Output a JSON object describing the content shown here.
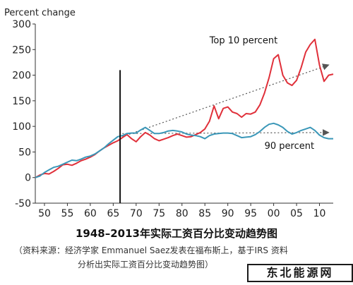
{
  "chart_data": {
    "type": "line",
    "ylabel": "Percent change",
    "ylim": [
      -50,
      300
    ],
    "xlim": [
      1948,
      2013
    ],
    "yticks": [
      -50,
      0,
      50,
      100,
      150,
      200,
      250,
      300
    ],
    "xticks": [
      {
        "year": 1950,
        "label": "50"
      },
      {
        "year": 1955,
        "label": "55"
      },
      {
        "year": 1960,
        "label": "60"
      },
      {
        "year": 1965,
        "label": "65"
      },
      {
        "year": 1970,
        "label": "70"
      },
      {
        "year": 1975,
        "label": "75"
      },
      {
        "year": 1980,
        "label": "80"
      },
      {
        "year": 1985,
        "label": "85"
      },
      {
        "year": 1990,
        "label": "90"
      },
      {
        "year": 1995,
        "label": "95"
      },
      {
        "year": 2000,
        "label": "00"
      },
      {
        "year": 2005,
        "label": "05"
      },
      {
        "year": 2010,
        "label": "10"
      }
    ],
    "vline_year": 1966.5,
    "grid": false,
    "series": [
      {
        "name": "Top 10 percent",
        "color": "#e0303a",
        "x": [
          1948,
          1949,
          1950,
          1951,
          1952,
          1953,
          1954,
          1955,
          1956,
          1957,
          1958,
          1959,
          1960,
          1961,
          1962,
          1963,
          1964,
          1965,
          1966,
          1967,
          1968,
          1969,
          1970,
          1971,
          1972,
          1973,
          1974,
          1975,
          1976,
          1977,
          1978,
          1979,
          1980,
          1981,
          1982,
          1983,
          1984,
          1985,
          1986,
          1987,
          1988,
          1989,
          1990,
          1991,
          1992,
          1993,
          1994,
          1995,
          1996,
          1997,
          1998,
          1999,
          2000,
          2001,
          2002,
          2003,
          2004,
          2005,
          2006,
          2007,
          2008,
          2009,
          2010,
          2011,
          2012,
          2013
        ],
        "values": [
          0,
          5,
          8,
          7,
          12,
          18,
          25,
          26,
          24,
          28,
          33,
          36,
          40,
          45,
          52,
          58,
          63,
          68,
          72,
          78,
          84,
          76,
          70,
          80,
          88,
          83,
          76,
          72,
          75,
          78,
          82,
          85,
          82,
          79,
          80,
          84,
          88,
          95,
          110,
          140,
          115,
          135,
          138,
          128,
          125,
          118,
          125,
          124,
          128,
          142,
          165,
          195,
          232,
          240,
          200,
          185,
          180,
          190,
          215,
          245,
          260,
          270,
          220,
          188,
          200,
          202
        ]
      },
      {
        "name": "90 percent",
        "color": "#3a97b8",
        "x": [
          1948,
          1949,
          1950,
          1951,
          1952,
          1953,
          1954,
          1955,
          1956,
          1957,
          1958,
          1959,
          1960,
          1961,
          1962,
          1963,
          1964,
          1965,
          1966,
          1967,
          1968,
          1969,
          1970,
          1971,
          1972,
          1973,
          1974,
          1975,
          1976,
          1977,
          1978,
          1979,
          1980,
          1981,
          1982,
          1983,
          1984,
          1985,
          1986,
          1987,
          1988,
          1989,
          1990,
          1991,
          1992,
          1993,
          1994,
          1995,
          1996,
          1997,
          1998,
          1999,
          2000,
          2001,
          2002,
          2003,
          2004,
          2005,
          2006,
          2007,
          2008,
          2009,
          2010,
          2011,
          2012,
          2013
        ],
        "values": [
          0,
          3,
          10,
          15,
          20,
          22,
          26,
          30,
          34,
          33,
          36,
          40,
          42,
          46,
          52,
          58,
          66,
          73,
          80,
          82,
          86,
          87,
          87,
          93,
          98,
          92,
          86,
          86,
          88,
          91,
          92,
          91,
          89,
          85,
          83,
          82,
          80,
          76,
          82,
          85,
          86,
          87,
          87,
          86,
          82,
          78,
          79,
          80,
          84,
          90,
          98,
          104,
          106,
          103,
          98,
          90,
          85,
          88,
          92,
          95,
          98,
          92,
          83,
          78,
          76,
          76
        ]
      }
    ],
    "trend_arrows": [
      {
        "from": [
          1967,
          80
        ],
        "to": [
          2012,
          220
        ]
      },
      {
        "from": [
          1967,
          86
        ],
        "to": [
          2012,
          88
        ]
      }
    ],
    "annotations": [
      {
        "text": "Top 10 percent",
        "x": 1986,
        "y": 262
      },
      {
        "text": "90 percent",
        "x": 1998,
        "y": 56
      }
    ]
  },
  "caption": {
    "title": "1948–2013年实际工资百分比变动趋势图",
    "source_line1": "（资料来源：经济学家 Emmanuel Saez发表在福布斯上，基于IRS 资料",
    "source_line2": "分析出实际工资百分比变动趋势图）"
  },
  "watermark": {
    "text": "东北能源网"
  }
}
